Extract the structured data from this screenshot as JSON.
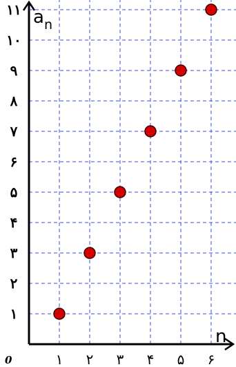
{
  "chart_data": {
    "type": "scatter",
    "x_axis_label": "n",
    "y_axis_label_main": "a",
    "y_axis_label_sub": "n",
    "origin_label": "0",
    "x_ticks": [
      {
        "value": 1,
        "label": "۱"
      },
      {
        "value": 2,
        "label": "۲"
      },
      {
        "value": 3,
        "label": "۳"
      },
      {
        "value": 4,
        "label": "۴"
      },
      {
        "value": 5,
        "label": "۵"
      },
      {
        "value": 6,
        "label": "۶"
      }
    ],
    "y_ticks": [
      {
        "value": 1,
        "label": "۱"
      },
      {
        "value": 2,
        "label": "۲"
      },
      {
        "value": 3,
        "label": "۳"
      },
      {
        "value": 4,
        "label": "۴"
      },
      {
        "value": 5,
        "label": "۵"
      },
      {
        "value": 6,
        "label": "۶"
      },
      {
        "value": 7,
        "label": "۷"
      },
      {
        "value": 8,
        "label": "۸"
      },
      {
        "value": 9,
        "label": "۹"
      },
      {
        "value": 10,
        "label": "۱۰"
      },
      {
        "value": 11,
        "label": "۱۱"
      }
    ],
    "xlim": [
      0,
      6.9
    ],
    "ylim": [
      0,
      11.4
    ],
    "grid": true,
    "points": [
      {
        "x": 1,
        "y": 1
      },
      {
        "x": 2,
        "y": 3
      },
      {
        "x": 3,
        "y": 5
      },
      {
        "x": 4,
        "y": 7
      },
      {
        "x": 5,
        "y": 9
      },
      {
        "x": 6,
        "y": 11
      }
    ],
    "colors": {
      "grid": "#3b4fe0",
      "point_fill": "#d40000",
      "point_stroke": "#3a0000",
      "axis": "#000000"
    }
  }
}
